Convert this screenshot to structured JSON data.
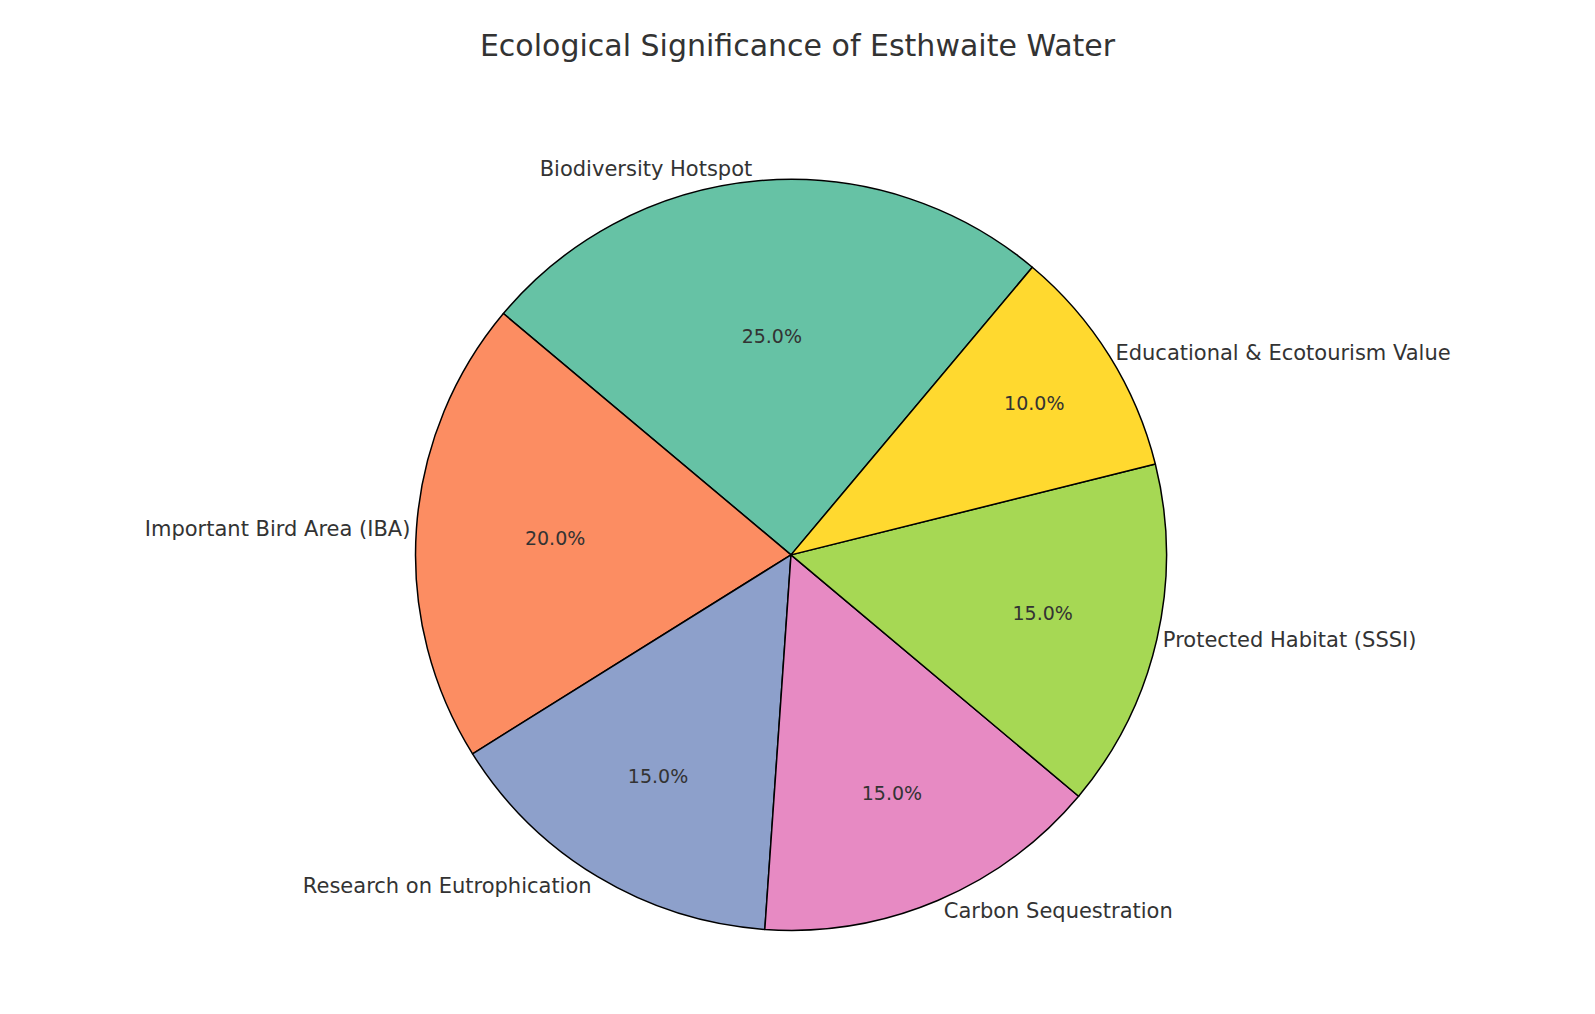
{
  "chart_data": {
    "type": "pie",
    "title": "Ecological Significance of Esthwaite Water",
    "categories": [
      "Biodiversity Hotspot",
      "Important Bird Area (IBA)",
      "Research on Eutrophication",
      "Carbon Sequestration",
      "Protected Habitat (SSSI)",
      "Educational & Ecotourism Value"
    ],
    "values": [
      25,
      20,
      15,
      15,
      15,
      10
    ],
    "value_labels": [
      "25.0%",
      "20.0%",
      "15.0%",
      "15.0%",
      "15.0%",
      "10.0%"
    ],
    "colors": [
      "#66c2a5",
      "#fc8d62",
      "#8da0cb",
      "#e78ac3",
      "#a6d854",
      "#ffd92f"
    ],
    "data_labels": true
  }
}
